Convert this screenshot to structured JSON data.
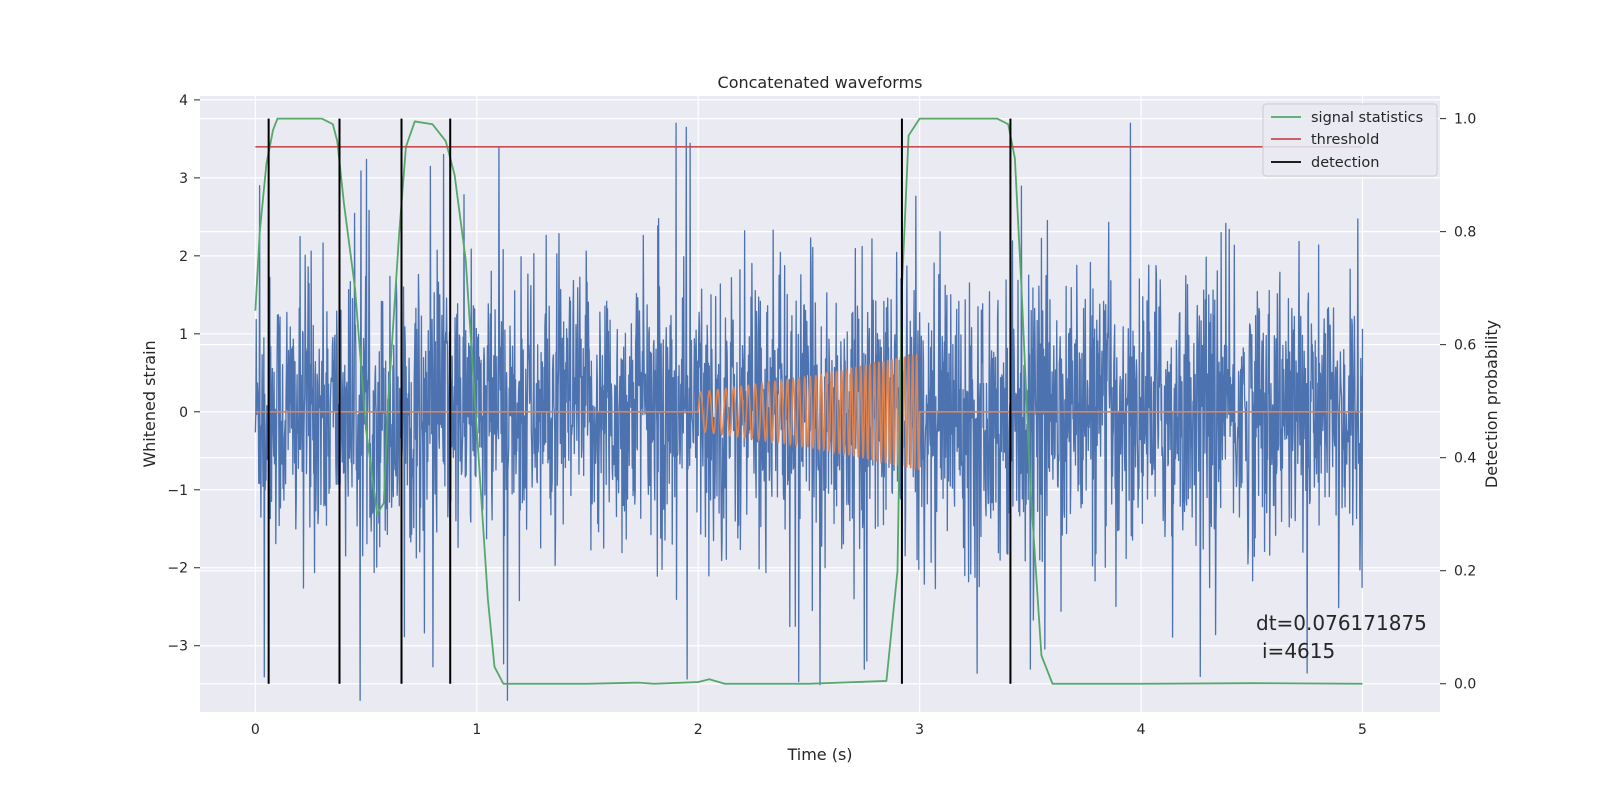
{
  "chart_data": {
    "type": "line",
    "title": "Concatenated waveforms",
    "xlabel": "Time (s)",
    "ylabel": "Whitened strain",
    "ylabel_right": "Detection probability",
    "xlim": [
      -0.25,
      5.35
    ],
    "ylim": [
      -3.85,
      4.05
    ],
    "ylim_right": [
      -0.05,
      1.04
    ],
    "xticks": [
      0,
      1,
      2,
      3,
      4,
      5
    ],
    "yticks": [
      -3,
      -2,
      -1,
      0,
      1,
      2,
      3,
      4
    ],
    "yticks_right": [
      0.0,
      0.2,
      0.4,
      0.6,
      0.8,
      1.0
    ],
    "xtick_labels": [
      "0",
      "1",
      "2",
      "3",
      "4",
      "5"
    ],
    "ytick_labels": [
      "−3",
      "−2",
      "−1",
      "0",
      "1",
      "2",
      "3",
      "4"
    ],
    "ytick_right_labels": [
      "0.0",
      "0.2",
      "0.4",
      "0.6",
      "0.8",
      "1.0"
    ],
    "grid": true,
    "legend_position": "top-right",
    "legend": [
      "signal statistics",
      "threshold",
      "detection"
    ],
    "colors": {
      "noise": "#4c72b0",
      "injection": "#dd8452",
      "signal_statistics": "#55a868",
      "threshold": "#c44e52",
      "detection": "#000000",
      "background": "#eaeaf2",
      "grid": "#ffffff"
    },
    "series": [
      {
        "name": "",
        "axis": "left",
        "role": "noise",
        "x_range": [
          0,
          5
        ],
        "amplitude_envelope": 3.7,
        "typical_std": 0.85,
        "extreme_values": [
          {
            "x": 0.02,
            "y": 2.9
          },
          {
            "x": 0.04,
            "y": -3.4
          },
          {
            "x": 0.85,
            "y": 3.3
          },
          {
            "x": 1.1,
            "y": 3.4
          },
          {
            "x": 1.9,
            "y": 3.7
          },
          {
            "x": 2.55,
            "y": 3.65
          },
          {
            "x": 2.55,
            "y": -3.5
          },
          {
            "x": 2.75,
            "y": -3.3
          },
          {
            "x": 3.5,
            "y": -3.3
          },
          {
            "x": 4.75,
            "y": -3.35
          }
        ]
      },
      {
        "name": "",
        "axis": "left",
        "role": "injection",
        "x": [
          0.0,
          2.0,
          2.0,
          2.5,
          3.0,
          3.0,
          5.0
        ],
        "envelope": [
          0.0,
          0.0,
          0.25,
          0.45,
          0.75,
          0.0,
          0.0
        ],
        "chirp_cycles": 40
      },
      {
        "name": "signal statistics",
        "axis": "right",
        "x": [
          0.0,
          0.02,
          0.05,
          0.08,
          0.1,
          0.15,
          0.3,
          0.35,
          0.37,
          0.4,
          0.45,
          0.5,
          0.55,
          0.58,
          0.6,
          0.65,
          0.68,
          0.72,
          0.8,
          0.86,
          0.9,
          0.95,
          1.0,
          1.05,
          1.08,
          1.12,
          1.5,
          1.73,
          1.8,
          2.0,
          2.05,
          2.12,
          2.5,
          2.85,
          2.9,
          2.92,
          2.95,
          3.0,
          3.35,
          3.4,
          3.43,
          3.46,
          3.5,
          3.55,
          3.6,
          4.0,
          4.5,
          5.0
        ],
        "y": [
          0.66,
          0.8,
          0.92,
          0.98,
          1.0,
          1.0,
          1.0,
          0.99,
          0.96,
          0.85,
          0.7,
          0.45,
          0.3,
          0.32,
          0.5,
          0.8,
          0.95,
          0.995,
          0.99,
          0.96,
          0.9,
          0.75,
          0.45,
          0.15,
          0.03,
          0.0,
          0.0,
          0.002,
          0.0,
          0.003,
          0.008,
          0.0,
          0.0,
          0.005,
          0.2,
          0.7,
          0.97,
          1.0,
          1.0,
          0.99,
          0.93,
          0.7,
          0.35,
          0.05,
          0.0,
          0.0,
          0.001,
          0.0
        ]
      },
      {
        "name": "threshold",
        "axis": "right",
        "x": [
          0.0,
          5.0
        ],
        "y": [
          0.95,
          0.95
        ]
      },
      {
        "name": "detection",
        "axis": "right",
        "type": "vlines",
        "x": [
          0.06,
          0.38,
          0.66,
          0.88,
          2.92,
          3.41
        ],
        "ymin": 0.0,
        "ymax": 1.0
      }
    ],
    "annotation": {
      "line1": "dt=0.076171875",
      "line2": "i=4615",
      "x": 4.5,
      "y": -2.85
    }
  }
}
